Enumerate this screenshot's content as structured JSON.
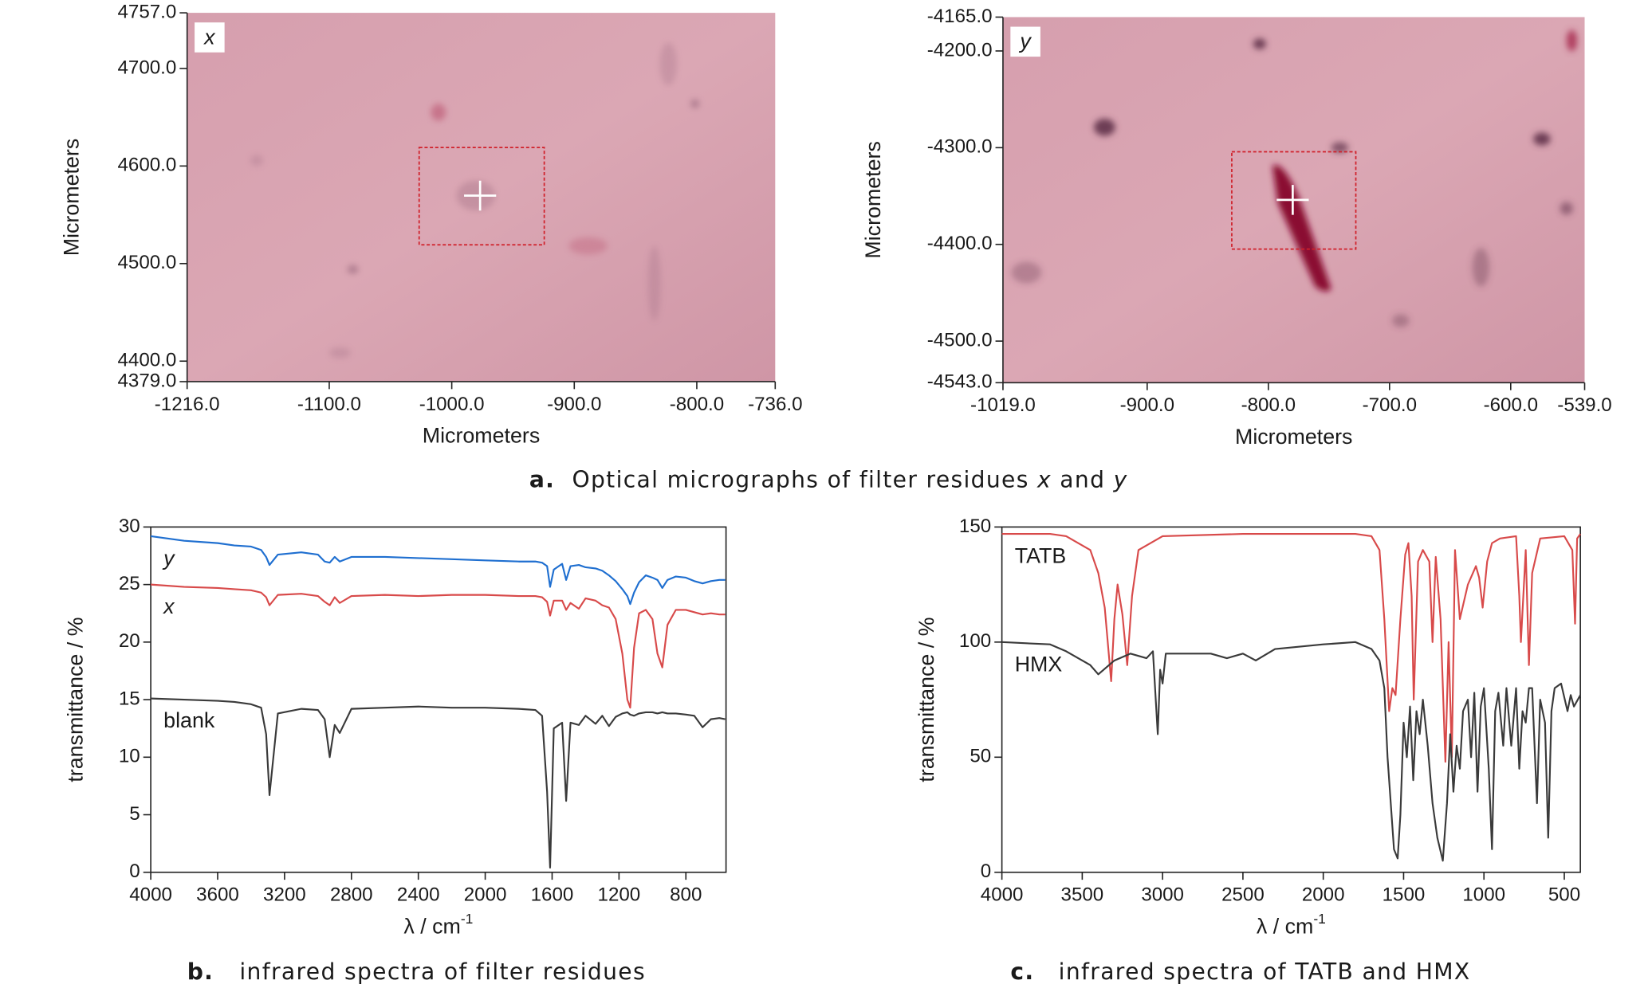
{
  "captions": [
    {
      "label": "a.",
      "parts": [
        {
          "text": "Optical micrographs of filter residues "
        },
        {
          "text": "x",
          "italic": true
        },
        {
          "text": " and "
        },
        {
          "text": "y",
          "italic": true
        }
      ]
    },
    {
      "label": "b.",
      "parts": [
        {
          "text": "infrared spectra of filter residues"
        }
      ]
    },
    {
      "label": "c.",
      "parts": [
        {
          "text": "infrared spectra of TATB and HMX"
        }
      ]
    }
  ],
  "chart_data": [
    {
      "type": "image",
      "label": "x",
      "xlabel": "Micrometers",
      "ylabel": "Micrometers",
      "xlim": [
        -1216,
        -736
      ],
      "ylim": [
        4379,
        4757
      ],
      "xticks": [
        {
          "value": -1216,
          "label": "-1216.0"
        },
        {
          "value": -1100,
          "label": "-1100.0"
        },
        {
          "value": -1000,
          "label": "-1000.0"
        },
        {
          "value": -900,
          "label": "-900.0"
        },
        {
          "value": -800,
          "label": "-800.0"
        },
        {
          "value": -736,
          "label": "-736.0"
        }
      ],
      "yticks": [
        {
          "value": 4757,
          "label": "4757.0"
        },
        {
          "value": 4700,
          "label": "4700.0"
        },
        {
          "value": 4600,
          "label": "4600.0"
        },
        {
          "value": 4500,
          "label": "4500.0"
        },
        {
          "value": 4400,
          "label": "4400.0"
        },
        {
          "value": 4379,
          "label": "4379.0"
        }
      ]
    },
    {
      "type": "image",
      "label": "y",
      "xlabel": "Micrometers",
      "ylabel": "Micrometers",
      "xlim": [
        -1019,
        -539
      ],
      "ylim": [
        -4543,
        -4165
      ],
      "xticks": [
        {
          "value": -1019,
          "label": "-1019.0"
        },
        {
          "value": -900,
          "label": "-900.0"
        },
        {
          "value": -800,
          "label": "-800.0"
        },
        {
          "value": -700,
          "label": "-700.0"
        },
        {
          "value": -600,
          "label": "-600.0"
        },
        {
          "value": -539,
          "label": "-539.0"
        }
      ],
      "yticks": [
        {
          "value": -4165,
          "label": "-4165.0"
        },
        {
          "value": -4200,
          "label": "-4200.0"
        },
        {
          "value": -4300,
          "label": "-4300.0"
        },
        {
          "value": -4400,
          "label": "-4400.0"
        },
        {
          "value": -4500,
          "label": "-4500.0"
        },
        {
          "value": -4543,
          "label": "-4543.0"
        }
      ]
    },
    {
      "type": "line",
      "frame": true,
      "xlabel": "λ / cm",
      "xlabel_sup": "-1",
      "ylabel": "transmittance / %",
      "xlim": [
        4000,
        560
      ],
      "ylim": [
        0,
        30
      ],
      "xticks": [
        4000,
        3600,
        3200,
        2800,
        2400,
        2000,
        1600,
        1200,
        800
      ],
      "yticks": [
        0,
        5,
        10,
        15,
        20,
        25,
        30
      ],
      "x": [
        4000,
        3800,
        3600,
        3500,
        3400,
        3340,
        3310,
        3290,
        3240,
        3100,
        3000,
        2960,
        2930,
        2900,
        2870,
        2800,
        2600,
        2400,
        2200,
        2000,
        1800,
        1700,
        1660,
        1630,
        1612,
        1590,
        1540,
        1516,
        1490,
        1440,
        1400,
        1340,
        1300,
        1260,
        1220,
        1180,
        1150,
        1133,
        1110,
        1080,
        1040,
        1000,
        970,
        941,
        910,
        860,
        800,
        750,
        700,
        650,
        600,
        565
      ],
      "series": [
        {
          "name": "y",
          "italic": true,
          "color": "#1f6fd0",
          "values": [
            29.2,
            28.8,
            28.6,
            28.4,
            28.3,
            28.0,
            27.4,
            26.7,
            27.6,
            27.8,
            27.6,
            27.0,
            26.9,
            27.4,
            27.0,
            27.4,
            27.4,
            27.3,
            27.2,
            27.1,
            27.0,
            27.0,
            26.9,
            26.6,
            24.8,
            26.3,
            26.8,
            25.4,
            26.6,
            26.7,
            26.5,
            26.4,
            26.2,
            25.8,
            25.3,
            24.6,
            24.0,
            23.3,
            24.3,
            25.2,
            25.8,
            25.6,
            25.4,
            24.7,
            25.4,
            25.7,
            25.6,
            25.3,
            25.1,
            25.3,
            25.4,
            25.4
          ]
        },
        {
          "name": "x",
          "italic": true,
          "color": "#d84a4a",
          "values": [
            25.0,
            24.8,
            24.7,
            24.6,
            24.5,
            24.3,
            23.9,
            23.2,
            24.1,
            24.2,
            24.0,
            23.5,
            23.2,
            23.9,
            23.4,
            24.0,
            24.1,
            24.0,
            24.1,
            24.1,
            24.0,
            24.0,
            23.9,
            23.5,
            22.3,
            23.6,
            23.6,
            22.8,
            23.4,
            22.9,
            23.8,
            23.6,
            23.2,
            23.0,
            22.0,
            19.0,
            15.0,
            14.3,
            19.5,
            22.5,
            22.8,
            22.0,
            19.0,
            17.8,
            21.5,
            22.8,
            22.8,
            22.6,
            22.4,
            22.5,
            22.4,
            22.4
          ]
        },
        {
          "name": "blank",
          "color": "#3a3a3a",
          "values": [
            15.1,
            15.0,
            14.9,
            14.8,
            14.6,
            14.3,
            12.0,
            6.7,
            13.8,
            14.2,
            14.1,
            13.3,
            10.0,
            12.8,
            12.1,
            14.2,
            14.3,
            14.4,
            14.3,
            14.3,
            14.2,
            14.1,
            13.6,
            7.0,
            0.4,
            12.5,
            13.0,
            6.2,
            13.0,
            12.8,
            13.6,
            12.9,
            13.6,
            12.7,
            13.5,
            13.8,
            13.9,
            13.7,
            13.6,
            13.8,
            13.9,
            13.9,
            13.8,
            13.9,
            13.8,
            13.8,
            13.7,
            13.6,
            12.6,
            13.3,
            13.4,
            13.3
          ]
        }
      ]
    },
    {
      "type": "line",
      "frame": true,
      "xlabel": "λ / cm",
      "xlabel_sup": "-1",
      "ylabel": "transmittance / %",
      "xlim": [
        4000,
        400
      ],
      "ylim": [
        0,
        150
      ],
      "xticks": [
        4000,
        3500,
        3000,
        2500,
        2000,
        1500,
        1000,
        500
      ],
      "yticks": [
        0,
        50,
        100,
        150
      ],
      "series": [
        {
          "name": "TATB",
          "color": "#d84a4a",
          "x": [
            4000,
            3700,
            3600,
            3450,
            3400,
            3360,
            3320,
            3300,
            3280,
            3250,
            3220,
            3190,
            3150,
            3000,
            2500,
            2000,
            1800,
            1700,
            1650,
            1620,
            1590,
            1570,
            1550,
            1520,
            1490,
            1470,
            1450,
            1437,
            1410,
            1380,
            1340,
            1320,
            1300,
            1270,
            1240,
            1220,
            1200,
            1180,
            1150,
            1100,
            1050,
            1030,
            1008,
            980,
            950,
            900,
            800,
            780,
            770,
            740,
            720,
            700,
            650,
            500,
            450,
            433,
            420,
            400
          ],
          "values": [
            147,
            147,
            146,
            140,
            130,
            115,
            83,
            110,
            125,
            112,
            90,
            120,
            140,
            146,
            147,
            147,
            147,
            146,
            140,
            110,
            70,
            80,
            77,
            110,
            138,
            143,
            120,
            75,
            135,
            140,
            135,
            100,
            137,
            110,
            48,
            100,
            50,
            140,
            110,
            125,
            133,
            128,
            115,
            135,
            143,
            145,
            146,
            120,
            100,
            140,
            90,
            130,
            145,
            146,
            140,
            108,
            145,
            147
          ]
        },
        {
          "name": "HMX",
          "color": "#3a3a3a",
          "x": [
            4000,
            3700,
            3600,
            3450,
            3400,
            3300,
            3200,
            3100,
            3060,
            3030,
            3015,
            3000,
            2980,
            2900,
            2700,
            2600,
            2500,
            2420,
            2300,
            2000,
            1800,
            1700,
            1650,
            1620,
            1600,
            1560,
            1537,
            1520,
            1500,
            1480,
            1460,
            1440,
            1420,
            1400,
            1380,
            1350,
            1320,
            1290,
            1256,
            1230,
            1210,
            1190,
            1170,
            1150,
            1130,
            1100,
            1080,
            1060,
            1040,
            1020,
            1000,
            970,
            950,
            930,
            910,
            880,
            860,
            830,
            800,
            780,
            760,
            740,
            720,
            700,
            670,
            650,
            620,
            600,
            580,
            560,
            520,
            480,
            460,
            440,
            400
          ],
          "values": [
            100,
            99,
            96,
            90,
            86,
            92,
            95,
            93,
            96,
            60,
            88,
            82,
            95,
            95,
            95,
            93,
            95,
            92,
            97,
            99,
            100,
            97,
            92,
            80,
            50,
            10,
            6,
            25,
            65,
            50,
            72,
            40,
            70,
            60,
            75,
            55,
            30,
            15,
            5,
            30,
            60,
            35,
            55,
            45,
            70,
            75,
            50,
            78,
            35,
            72,
            80,
            45,
            10,
            70,
            78,
            55,
            80,
            55,
            80,
            45,
            70,
            65,
            80,
            80,
            30,
            75,
            65,
            15,
            70,
            80,
            82,
            70,
            77,
            72,
            77
          ]
        }
      ]
    }
  ]
}
